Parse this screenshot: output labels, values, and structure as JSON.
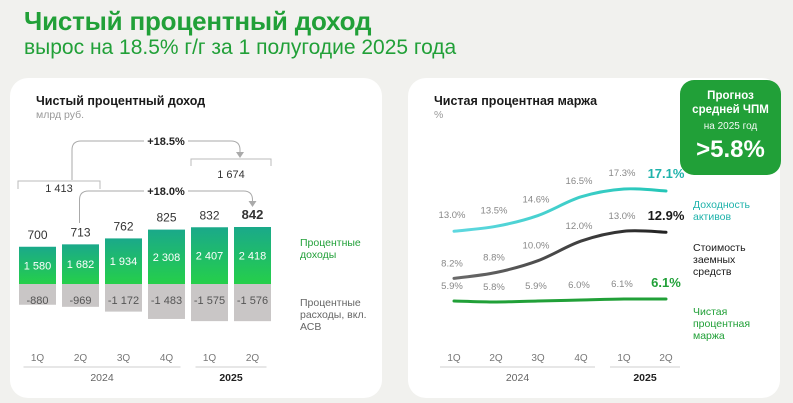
{
  "header": {
    "title": "Чистый процентный доход",
    "subtitle": "вырос на 18.5% г/г за 1 полугодие 2025 года"
  },
  "forecast": {
    "line1": "Прогноз",
    "line2": "средней ЧПМ",
    "period": "на 2025 год",
    "value": ">5.8%"
  },
  "colors": {
    "brand": "#21a038",
    "income_top": "#1aa98a",
    "income_bottom": "#25cf4a",
    "expense": "#c9c6c6",
    "teal": "#2ec9c0",
    "dark": "#2a2a2a",
    "green": "#21a038"
  },
  "chart_data": [
    {
      "type": "bar",
      "title": "Чистый процентный доход",
      "unit": "млрд руб.",
      "categories": [
        "1Q",
        "2Q",
        "3Q",
        "4Q",
        "1Q",
        "2Q"
      ],
      "category_labels": [
        "1Q",
        "2Q",
        "3Q",
        "4Q",
        "1Q",
        "2Q"
      ],
      "years": [
        {
          "label": "2024",
          "from": 0,
          "to": 3,
          "bold": false
        },
        {
          "label": "2025",
          "from": 4,
          "to": 5,
          "bold": true
        }
      ],
      "series": [
        {
          "name": "Процентные доходы",
          "values": [
            1580,
            1682,
            1934,
            2308,
            2407,
            2418
          ],
          "labels": [
            "1 580",
            "1 682",
            "1 934",
            "2 308",
            "2 407",
            "2 418"
          ]
        },
        {
          "name": "Процентные расходы, вкл. АСВ",
          "values": [
            -880,
            -969,
            -1172,
            -1483,
            -1575,
            -1576
          ],
          "labels": [
            "-880",
            "-969",
            "-1 172",
            "-1 483",
            "-1 575",
            "-1 576"
          ]
        },
        {
          "name": "Чистый процентный доход",
          "values": [
            700,
            713,
            762,
            825,
            832,
            842
          ],
          "labels": [
            "700",
            "713",
            "762",
            "825",
            "832",
            "842"
          ]
        }
      ],
      "half_year_totals": [
        {
          "label": "1 413",
          "from": 0,
          "to": 1
        },
        {
          "label": "1 674",
          "from": 4,
          "to": 5
        }
      ],
      "growth_annotations": [
        {
          "label": "+18.5%",
          "from": 0,
          "to": 5,
          "kind": "half_year"
        },
        {
          "label": "+18.0%",
          "from": 1,
          "to": 5,
          "kind": "quarter"
        }
      ],
      "legend": {
        "income": "Процентные доходы",
        "expense": "Процентные расходы, вкл. АСВ"
      }
    },
    {
      "type": "line",
      "title": "Чистая процентная маржа",
      "unit": "%",
      "categories": [
        "1Q",
        "2Q",
        "3Q",
        "4Q",
        "1Q",
        "2Q"
      ],
      "years": [
        {
          "label": "2024",
          "from": 0,
          "to": 3,
          "bold": false
        },
        {
          "label": "2025",
          "from": 4,
          "to": 5,
          "bold": true
        }
      ],
      "ylim": [
        4,
        19
      ],
      "series": [
        {
          "name": "Доходность активов",
          "key": "teal",
          "values": [
            13.0,
            13.5,
            14.6,
            16.5,
            17.3,
            17.1
          ],
          "labels": [
            "13.0%",
            "13.5%",
            "14.6%",
            "16.5%",
            "17.3%",
            "17.1%"
          ]
        },
        {
          "name": "Стоимость заемных средств",
          "key": "dark",
          "values": [
            8.2,
            8.8,
            10.0,
            12.0,
            13.0,
            12.9
          ],
          "labels": [
            "8.2%",
            "8.8%",
            "10.0%",
            "12.0%",
            "13.0%",
            "12.9%"
          ]
        },
        {
          "name": "Чистая процентная маржа",
          "key": "green",
          "values": [
            5.9,
            5.8,
            5.9,
            6.0,
            6.1,
            6.1
          ],
          "labels": [
            "5.9%",
            "5.8%",
            "5.9%",
            "6.0%",
            "6.1%",
            "6.1%"
          ]
        }
      ],
      "legend": {
        "yield": "Доходность активов",
        "cost": "Стоимость заемных средств",
        "nim": "Чистая процентная маржа"
      }
    }
  ]
}
